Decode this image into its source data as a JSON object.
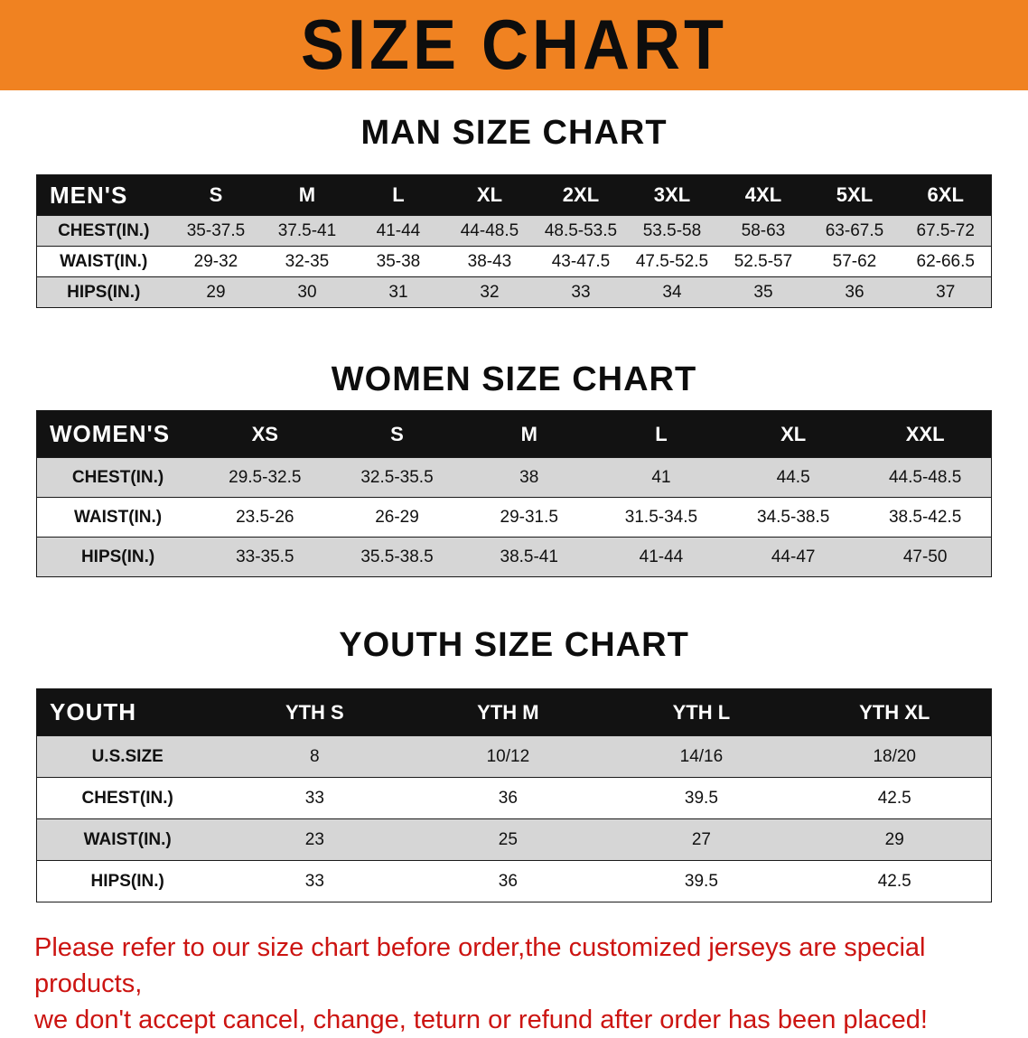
{
  "banner": {
    "title": "SIZE CHART",
    "bg_color": "#f08221",
    "text_color": "#0d0d0d"
  },
  "colors": {
    "table_header_bg": "#121212",
    "table_header_text": "#ffffff",
    "stripe_gray": "#d6d6d6",
    "notice_red": "#cc1411"
  },
  "sections": [
    {
      "heading": "MAN SIZE CHART",
      "table": {
        "header": [
          "MEN'S",
          "S",
          "M",
          "L",
          "XL",
          "2XL",
          "3XL",
          "4XL",
          "5XL",
          "6XL"
        ],
        "rows": [
          [
            "CHEST(IN.)",
            "35-37.5",
            "37.5-41",
            "41-44",
            "44-48.5",
            "48.5-53.5",
            "53.5-58",
            "58-63",
            "63-67.5",
            "67.5-72"
          ],
          [
            "WAIST(IN.)",
            "29-32",
            "32-35",
            "35-38",
            "38-43",
            "43-47.5",
            "47.5-52.5",
            "52.5-57",
            "57-62",
            "62-66.5"
          ],
          [
            "HIPS(IN.)",
            "29",
            "30",
            "31",
            "32",
            "33",
            "34",
            "35",
            "36",
            "37"
          ]
        ]
      }
    },
    {
      "heading": "WOMEN SIZE CHART",
      "table": {
        "header": [
          "WOMEN'S",
          "XS",
          "S",
          "M",
          "L",
          "XL",
          "XXL"
        ],
        "rows": [
          [
            "CHEST(IN.)",
            "29.5-32.5",
            "32.5-35.5",
            "38",
            "41",
            "44.5",
            "44.5-48.5"
          ],
          [
            "WAIST(IN.)",
            "23.5-26",
            "26-29",
            "29-31.5",
            "31.5-34.5",
            "34.5-38.5",
            "38.5-42.5"
          ],
          [
            "HIPS(IN.)",
            "33-35.5",
            "35.5-38.5",
            "38.5-41",
            "41-44",
            "44-47",
            "47-50"
          ]
        ]
      }
    },
    {
      "heading": "YOUTH SIZE CHART",
      "table": {
        "header": [
          "YOUTH",
          "YTH S",
          "YTH M",
          "YTH L",
          "YTH XL"
        ],
        "rows": [
          [
            "U.S.SIZE",
            "8",
            "10/12",
            "14/16",
            "18/20"
          ],
          [
            "CHEST(IN.)",
            "33",
            "36",
            "39.5",
            "42.5"
          ],
          [
            "WAIST(IN.)",
            "23",
            "25",
            "27",
            "29"
          ],
          [
            "HIPS(IN.)",
            "33",
            "36",
            "39.5",
            "42.5"
          ]
        ]
      }
    }
  ],
  "footer": {
    "line1": "Please refer to our size chart before order,the customized jerseys are special products,",
    "line2": "we don't accept cancel, change, teturn or refund after order has been placed!"
  }
}
